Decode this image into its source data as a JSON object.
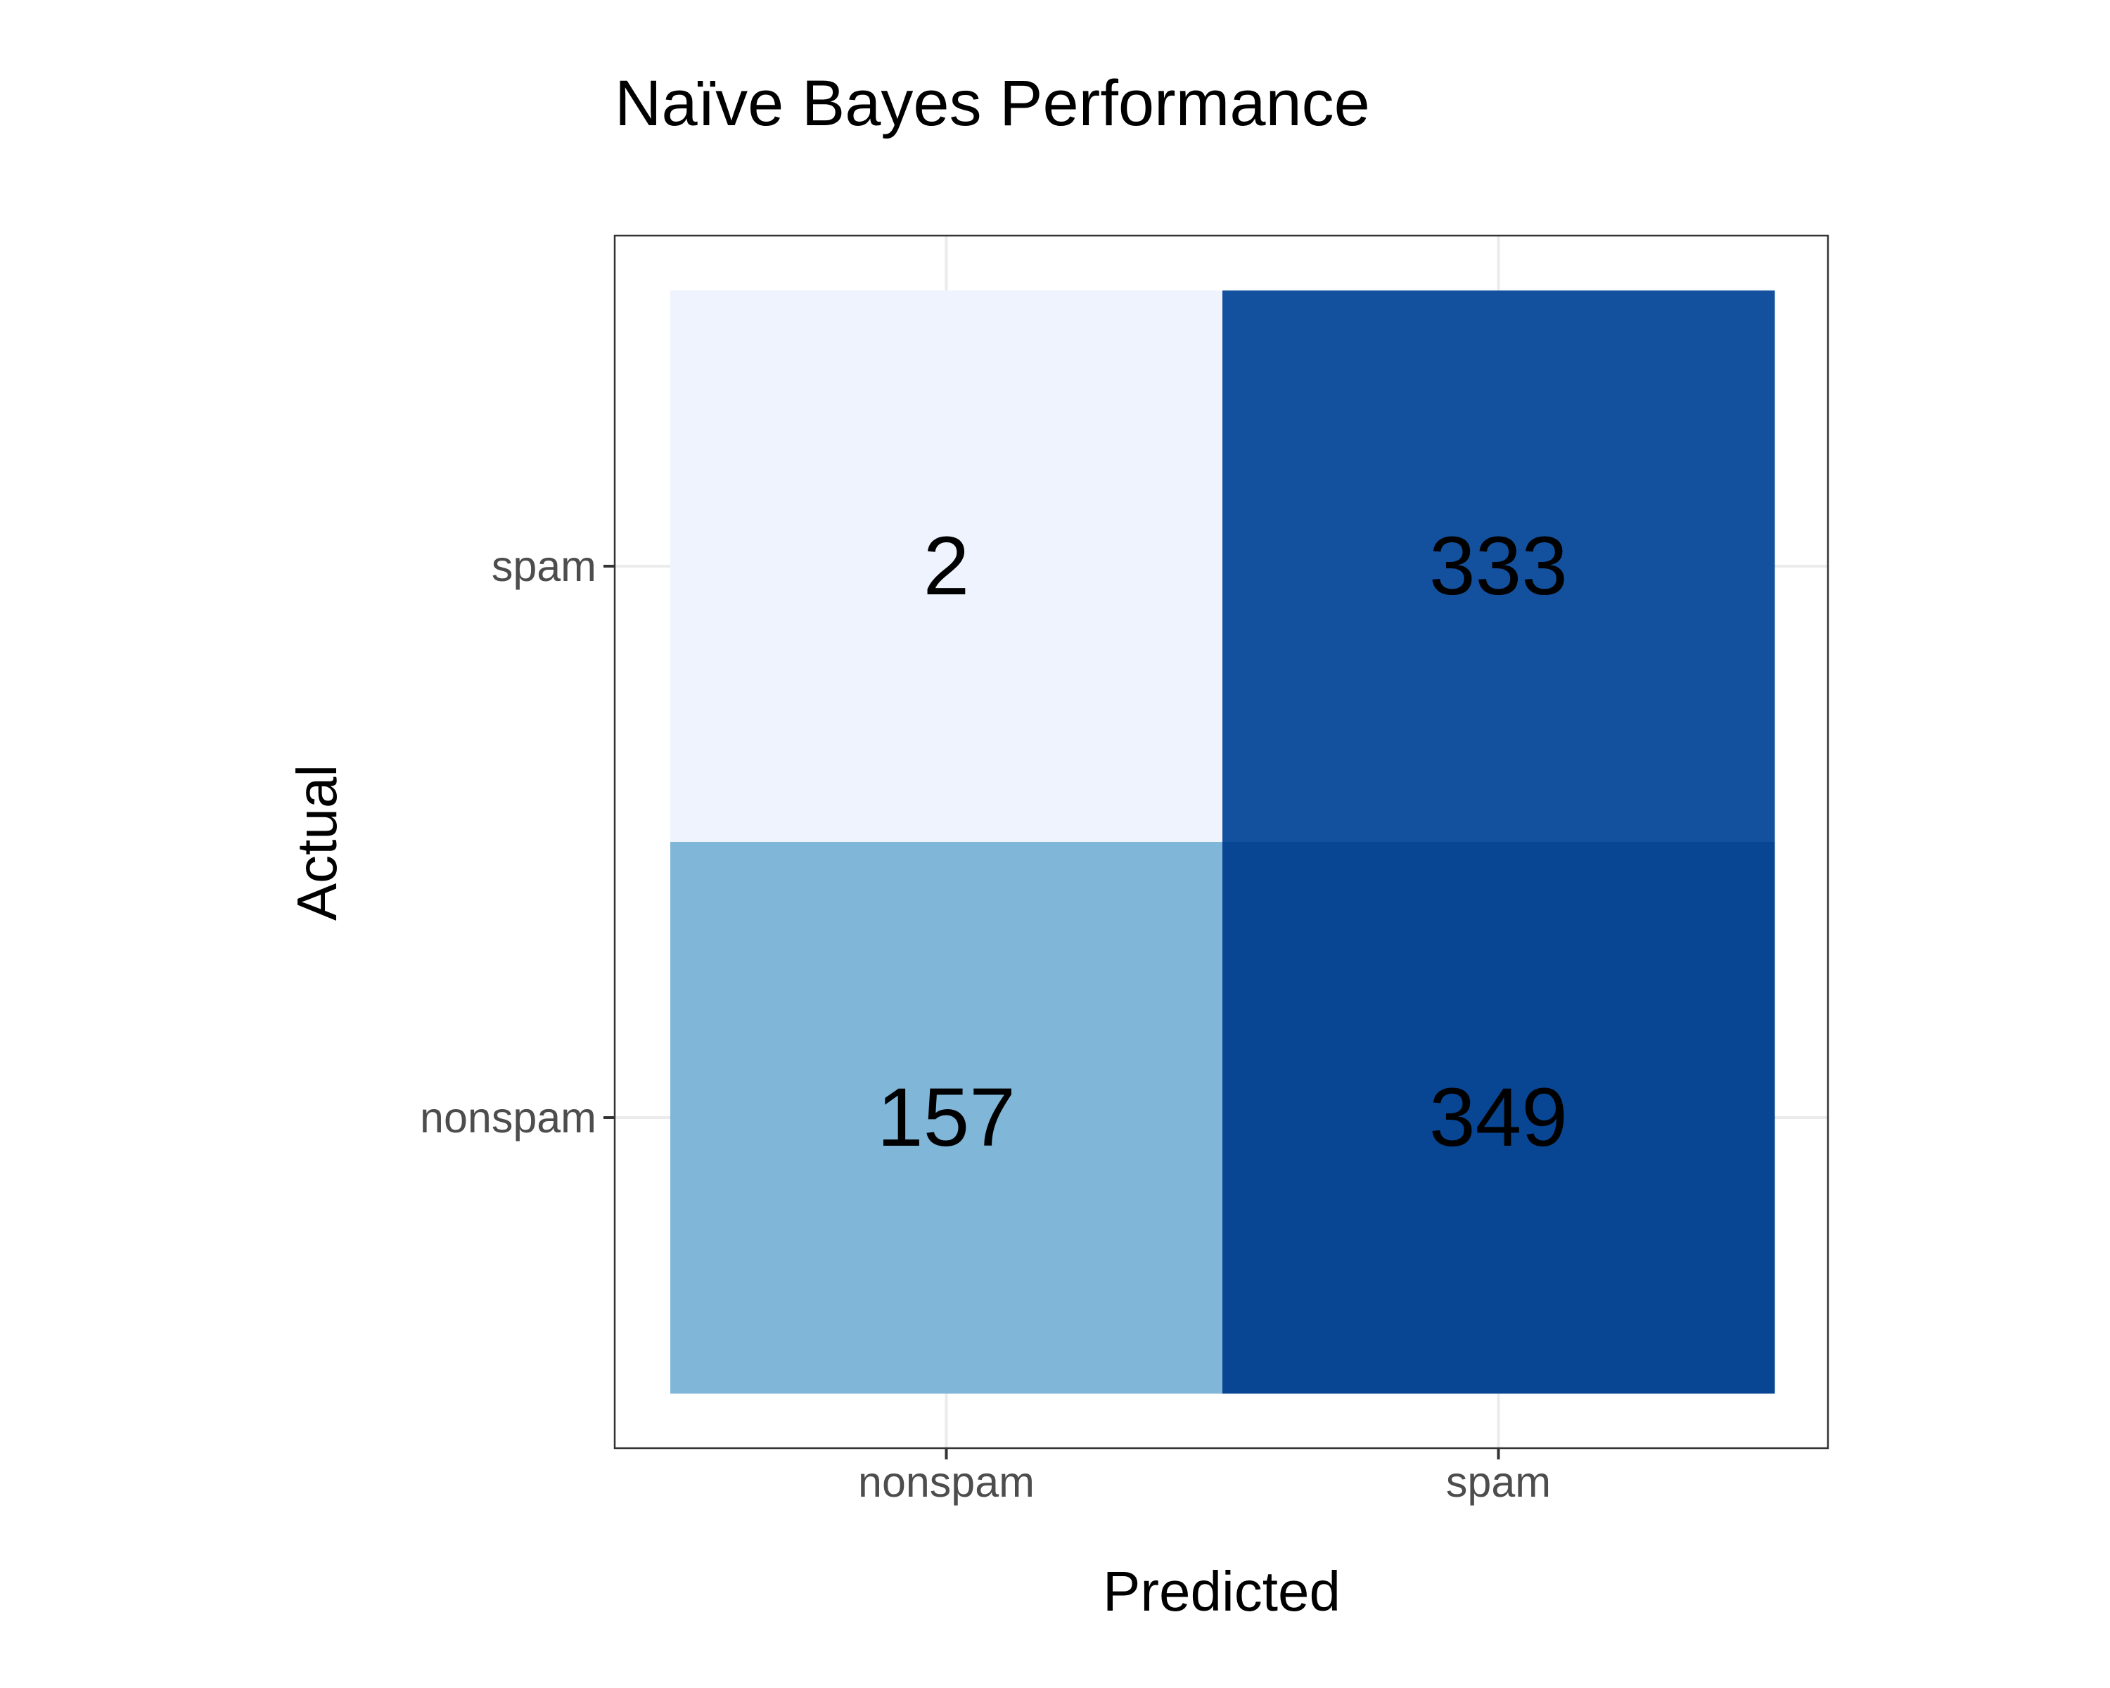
{
  "chart_data": {
    "type": "heatmap",
    "title": "Naïve Bayes Performance",
    "xlabel": "Predicted",
    "ylabel": "Actual",
    "x_categories": [
      "nonspam",
      "spam"
    ],
    "y_categories": [
      "nonspam",
      "spam"
    ],
    "cells": [
      {
        "actual": "spam",
        "predicted": "nonspam",
        "value": 2,
        "label": "2",
        "color": "#eef3fd"
      },
      {
        "actual": "spam",
        "predicted": "spam",
        "value": 333,
        "label": "333",
        "color": "#13519f"
      },
      {
        "actual": "nonspam",
        "predicted": "nonspam",
        "value": 157,
        "label": "157",
        "color": "#80b6d8"
      },
      {
        "actual": "nonspam",
        "predicted": "spam",
        "value": 349,
        "label": "349",
        "color": "#084592"
      }
    ],
    "grid": true,
    "legend": "none"
  }
}
